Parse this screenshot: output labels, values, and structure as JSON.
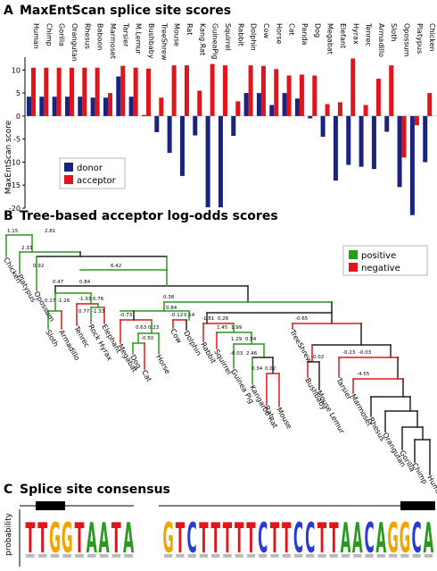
{
  "panel_a": {
    "letter": "A",
    "title": "MaxEntScan splice site scores",
    "chart_data": {
      "type": "bar",
      "title": "MaxEntScan splice site scores",
      "ylabel": "MaxEntScan score",
      "ylim": [
        -20,
        12
      ],
      "yticks": [
        -20,
        -15,
        -10,
        -5,
        0,
        5,
        10
      ],
      "legend_position": "bottom-left",
      "categories": [
        "Human",
        "Chimp",
        "Gorilla",
        "Orangutan",
        "Rhesus",
        "Baboon",
        "Marmoset",
        "Tarsier",
        "M.Lemur",
        "Bushbaby",
        "TreeShrew",
        "Mouse",
        "Rat",
        "Kang.Rat",
        "GuineaPig",
        "Squirrel",
        "Rabbit",
        "Dolphin",
        "Cow",
        "Horse",
        "Cat",
        "Panda",
        "Dog",
        "Megabat",
        "Elefant",
        "Hyrax",
        "Tenrec",
        "Armadillo",
        "Sloth",
        "Opossum",
        "Platypus",
        "Chicken"
      ],
      "series": [
        {
          "name": "donor",
          "color": "#1a237e",
          "values": [
            4.2,
            4.2,
            4.2,
            4.2,
            4.2,
            4.0,
            4.0,
            8.6,
            4.2,
            0.2,
            -3.5,
            -8.0,
            -13.0,
            -4.2,
            -19.8,
            -19.8,
            -4.3,
            5.0,
            5.0,
            2.4,
            5.0,
            3.8,
            -0.5,
            -4.5,
            -14.0,
            -10.6,
            -11.0,
            -11.5,
            -3.4,
            -15.4,
            -21.5,
            -10.0
          ]
        },
        {
          "name": "acceptor",
          "color": "#e0151b",
          "values": [
            10.5,
            10.5,
            10.5,
            10.5,
            10.5,
            10.5,
            5.0,
            10.9,
            10.5,
            10.3,
            4.0,
            11.0,
            11.0,
            5.5,
            11.3,
            11.0,
            3.2,
            11.0,
            10.9,
            10.2,
            8.8,
            9.0,
            8.8,
            2.6,
            3.0,
            12.5,
            2.4,
            8.1,
            11.0,
            -9.0,
            -2.0,
            5.0
          ]
        }
      ]
    },
    "legend": {
      "donor": "donor",
      "acceptor": "acceptor"
    }
  },
  "panel_b": {
    "letter": "B",
    "title": "Tree-based acceptor log-odds scores",
    "legend": {
      "positive": "positive",
      "negative": "negative"
    },
    "colors": {
      "positive": "#2a9a1e",
      "negative": "#e0151b",
      "neutral": "#222222"
    },
    "leaves": [
      "Chicken",
      "Platypus",
      "Opossum",
      "Sloth",
      "Armadillo",
      "Tenrec",
      "Rock Hyrax",
      "Elephant",
      "Megabat",
      "Dog",
      "Cat",
      "Horse",
      "Cow",
      "Dolphin",
      "Rabbit",
      "Squirrel",
      "Guinea Pig",
      "Kangaroo Rat",
      "Rat",
      "Mouse",
      "TreeShrew",
      "Bushbaby",
      "Mouse Lemur",
      "Tarsier",
      "Marmoset",
      "Rhesus",
      "Orangutan",
      "Gorilla",
      "Chimp",
      "Human"
    ],
    "branch_scores": [
      "1.15",
      "2.81",
      "2.33",
      "0.92",
      "6.42",
      "0.47",
      "0.84",
      "0.38",
      "0.84",
      "0.17",
      "-1.26",
      "-1.33",
      "0.76",
      "0.77",
      "-1.33",
      "-0.73",
      "0.63",
      "0.23",
      "-0.50",
      "-0.12",
      "0.14",
      "-1.81",
      "0.26",
      "1.45",
      "1.99",
      "1.29",
      "0.54",
      "-0.03",
      "2.46",
      "0.34",
      "0.02",
      "-0.65",
      "-0.02",
      "-0.23",
      "-0.03",
      "-4.55"
    ]
  },
  "panel_c": {
    "letter": "C",
    "title": "Splice site consensus",
    "ylabel": "probability",
    "donor_logo": [
      "T",
      "T",
      "G",
      "G",
      "T",
      "A",
      "A",
      "T",
      "A"
    ],
    "acceptor_logo": [
      "G",
      "T",
      "C",
      "T",
      "T",
      "T",
      "T",
      "T",
      "C",
      "T",
      "T",
      "C",
      "C",
      "T",
      "T",
      "A",
      "A",
      "C",
      "A",
      "G",
      "G",
      "C",
      "A"
    ]
  }
}
